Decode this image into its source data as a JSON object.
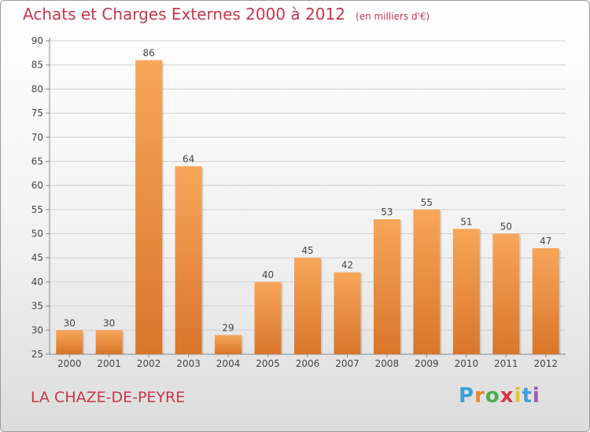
{
  "title": "Achats et Charges Externes 2000 à 2012",
  "unit": "(en milliers d'€)",
  "commune": "LA CHAZE-DE-PEYRE",
  "logo": {
    "letters": [
      "P",
      "r",
      "o",
      "x",
      "i",
      "t",
      "i"
    ],
    "colors": [
      "#3aa0d8",
      "#e8862a",
      "#4caf50",
      "#d8344a",
      "#e8c22a",
      "#3aa0d8",
      "#9b59b6"
    ]
  },
  "colors": {
    "bar_top": "#f7a65a",
    "bar_bottom": "#d9762a",
    "text_accent": "#c8364b"
  },
  "chart_data": {
    "type": "bar",
    "title": "Achats et Charges Externes 2000 à 2012",
    "subtitle": "(en milliers d'€)",
    "xlabel": "",
    "ylabel": "",
    "categories": [
      "2000",
      "2001",
      "2002",
      "2003",
      "2004",
      "2005",
      "2006",
      "2007",
      "2008",
      "2009",
      "2010",
      "2011",
      "2012"
    ],
    "values": [
      30,
      30,
      86,
      64,
      29,
      40,
      45,
      42,
      53,
      55,
      51,
      50,
      47
    ],
    "ylim": [
      25,
      90
    ],
    "yticks": [
      25,
      30,
      35,
      40,
      45,
      50,
      55,
      60,
      65,
      70,
      75,
      80,
      85,
      90
    ],
    "grid": true,
    "legend": "none"
  }
}
